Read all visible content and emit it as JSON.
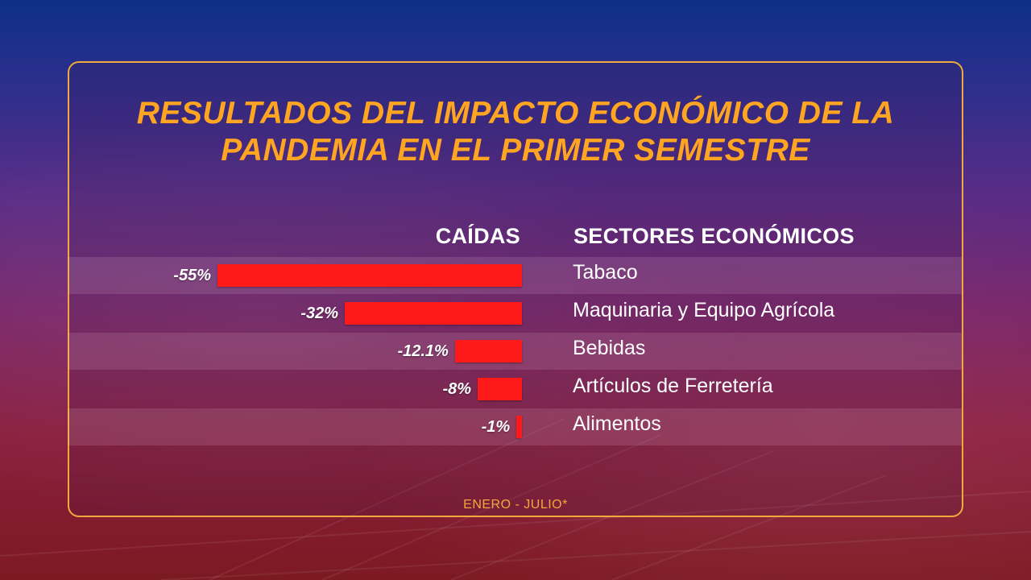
{
  "title_lines": [
    "RESULTADOS DEL IMPACTO ECONÓMICO DE LA",
    "PANDEMIA EN EL PRIMER SEMESTRE"
  ],
  "headers": {
    "caidas": "CAÍDAS",
    "sectores": "SECTORES ECONÓMICOS"
  },
  "footnote": "ENERO - JULIO*",
  "colors": {
    "bar": "#ff1a1a",
    "title": "#ffa521",
    "frame": "#f0a93a"
  },
  "chart_data": {
    "type": "bar",
    "orientation": "horizontal",
    "categories": [
      "Tabaco",
      "Maquinaria y Equipo Agrícola",
      "Bebidas",
      "Artículos de Ferretería",
      "Alimentos"
    ],
    "values": [
      -55,
      -32,
      -12.1,
      -8,
      -1
    ],
    "value_labels": [
      "-55%",
      "-32%",
      "-12.1%",
      "-8%",
      "-1%"
    ],
    "unit": "%",
    "direction": "leftward",
    "grid": false,
    "legend": "none"
  }
}
